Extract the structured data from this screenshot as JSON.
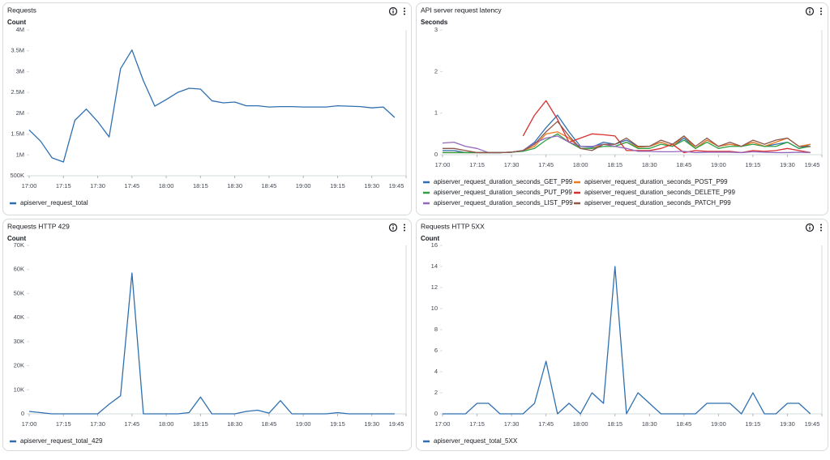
{
  "chart_data": [
    {
      "type": "line",
      "title": "Requests",
      "y_label": "Count",
      "x": [
        "17:00",
        "17:05",
        "17:10",
        "17:15",
        "17:20",
        "17:25",
        "17:30",
        "17:35",
        "17:40",
        "17:45",
        "17:50",
        "17:55",
        "18:00",
        "18:05",
        "18:10",
        "18:15",
        "18:20",
        "18:25",
        "18:30",
        "18:35",
        "18:40",
        "18:45",
        "18:50",
        "18:55",
        "19:00",
        "19:05",
        "19:10",
        "19:15",
        "19:20",
        "19:25",
        "19:30",
        "19:35",
        "19:40"
      ],
      "xlim": [
        "17:00",
        "19:45"
      ],
      "xticks": [
        "17:00",
        "17:15",
        "17:30",
        "17:45",
        "18:00",
        "18:15",
        "18:30",
        "18:45",
        "19:00",
        "19:15",
        "19:30",
        "19:45"
      ],
      "ylim": [
        500000,
        4000000
      ],
      "yticks": [
        {
          "value": 500000,
          "label": "500K"
        },
        {
          "value": 1000000,
          "label": "1M"
        },
        {
          "value": 1500000,
          "label": "1.5M"
        },
        {
          "value": 2000000,
          "label": "2M"
        },
        {
          "value": 2500000,
          "label": "2.5M"
        },
        {
          "value": 3000000,
          "label": "3M"
        },
        {
          "value": 3500000,
          "label": "3.5M"
        },
        {
          "value": 4000000,
          "label": "4M"
        }
      ],
      "series": [
        {
          "name": "apiserver_request_total",
          "color": "#2f6fb0",
          "values": [
            1600000,
            1330000,
            930000,
            830000,
            1830000,
            2100000,
            1800000,
            1430000,
            3070000,
            3520000,
            2780000,
            2170000,
            2330000,
            2500000,
            2600000,
            2580000,
            2300000,
            2250000,
            2270000,
            2180000,
            2180000,
            2150000,
            2160000,
            2160000,
            2150000,
            2150000,
            2150000,
            2180000,
            2170000,
            2160000,
            2130000,
            2150000,
            1900000
          ]
        }
      ]
    },
    {
      "type": "line",
      "title": "API server request latency",
      "y_label": "Seconds",
      "x": [
        "17:00",
        "17:05",
        "17:10",
        "17:15",
        "17:20",
        "17:25",
        "17:30",
        "17:35",
        "17:40",
        "17:45",
        "17:50",
        "17:55",
        "18:00",
        "18:05",
        "18:10",
        "18:15",
        "18:20",
        "18:25",
        "18:30",
        "18:35",
        "18:40",
        "18:45",
        "18:50",
        "18:55",
        "19:00",
        "19:05",
        "19:10",
        "19:15",
        "19:20",
        "19:25",
        "19:30",
        "19:35",
        "19:40"
      ],
      "xlim": [
        "17:00",
        "19:45"
      ],
      "xticks": [
        "17:00",
        "17:15",
        "17:30",
        "17:45",
        "18:00",
        "18:15",
        "18:30",
        "18:45",
        "19:00",
        "19:15",
        "19:30",
        "19:45"
      ],
      "ylim": [
        0,
        3
      ],
      "yticks": [
        0,
        1,
        2,
        3
      ],
      "series": [
        {
          "name": "apiserver_request_duration_seconds_GET_P99",
          "color": "#2f6fb0",
          "values": [
            0.1,
            0.1,
            0.05,
            0.05,
            0.05,
            0.05,
            0.06,
            0.1,
            0.3,
            0.65,
            0.95,
            0.55,
            0.2,
            0.18,
            0.3,
            0.25,
            0.35,
            0.2,
            0.2,
            0.3,
            0.2,
            0.4,
            0.15,
            0.35,
            0.2,
            0.25,
            0.2,
            0.3,
            0.2,
            0.25,
            0.3,
            0.15,
            0.25
          ]
        },
        {
          "name": "apiserver_request_duration_seconds_POST_P99",
          "color": "#ec7a1c",
          "values": [
            0.05,
            0.05,
            0.05,
            0.05,
            0.05,
            0.05,
            0.06,
            0.1,
            0.2,
            0.5,
            0.55,
            0.4,
            0.15,
            0.15,
            0.25,
            0.2,
            0.3,
            0.18,
            0.2,
            0.3,
            0.2,
            0.45,
            0.15,
            0.35,
            0.2,
            0.25,
            0.2,
            0.3,
            0.2,
            0.3,
            0.4,
            0.2,
            0.25
          ]
        },
        {
          "name": "apiserver_request_duration_seconds_PUT_P99",
          "color": "#2ea043",
          "values": [
            0.05,
            0.05,
            0.05,
            0.05,
            0.05,
            0.05,
            0.06,
            0.08,
            0.15,
            0.35,
            0.5,
            0.3,
            0.15,
            0.15,
            0.2,
            0.2,
            0.3,
            0.15,
            0.15,
            0.25,
            0.2,
            0.35,
            0.15,
            0.3,
            0.15,
            0.2,
            0.2,
            0.25,
            0.2,
            0.2,
            0.3,
            0.15,
            0.2
          ]
        },
        {
          "name": "apiserver_request_duration_seconds_DELETE_P99",
          "color": "#d62f2f",
          "values": [
            null,
            null,
            null,
            null,
            null,
            null,
            null,
            0.45,
            0.95,
            1.3,
            0.85,
            0.3,
            0.4,
            0.5,
            0.48,
            0.45,
            0.1,
            0.1,
            0.1,
            0.15,
            0.25,
            0.05,
            0.1,
            0.08,
            0.08,
            0.08,
            0.05,
            0.1,
            0.08,
            0.1,
            0.15,
            0.1,
            0.05
          ]
        },
        {
          "name": "apiserver_request_duration_seconds_LIST_P99",
          "color": "#9467bd",
          "values": [
            0.28,
            0.3,
            0.2,
            0.15,
            0.05,
            0.05,
            0.06,
            0.1,
            0.28,
            0.4,
            0.45,
            0.3,
            0.2,
            0.2,
            0.25,
            0.2,
            0.15,
            0.08,
            0.08,
            0.07,
            0.07,
            0.08,
            0.05,
            0.06,
            0.06,
            0.06,
            0.05,
            0.07,
            0.06,
            0.05,
            0.05,
            0.06,
            0.05
          ]
        },
        {
          "name": "apiserver_request_duration_seconds_PATCH_P99",
          "color": "#8c564b",
          "values": [
            0.15,
            0.15,
            0.1,
            0.05,
            0.05,
            0.05,
            0.06,
            0.1,
            0.25,
            0.55,
            0.8,
            0.45,
            0.15,
            0.1,
            0.25,
            0.25,
            0.4,
            0.2,
            0.2,
            0.35,
            0.25,
            0.45,
            0.2,
            0.4,
            0.2,
            0.3,
            0.2,
            0.35,
            0.25,
            0.35,
            0.4,
            0.2,
            0.2
          ]
        }
      ]
    },
    {
      "type": "line",
      "title": "Requests HTTP 429",
      "y_label": "Count",
      "x": [
        "17:00",
        "17:05",
        "17:10",
        "17:15",
        "17:20",
        "17:25",
        "17:30",
        "17:35",
        "17:40",
        "17:45",
        "17:50",
        "17:55",
        "18:00",
        "18:05",
        "18:10",
        "18:15",
        "18:20",
        "18:25",
        "18:30",
        "18:35",
        "18:40",
        "18:45",
        "18:50",
        "18:55",
        "19:00",
        "19:05",
        "19:10",
        "19:15",
        "19:20",
        "19:25",
        "19:30",
        "19:35",
        "19:40"
      ],
      "xlim": [
        "17:00",
        "19:45"
      ],
      "xticks": [
        "17:00",
        "17:15",
        "17:30",
        "17:45",
        "18:00",
        "18:15",
        "18:30",
        "18:45",
        "19:00",
        "19:15",
        "19:30",
        "19:45"
      ],
      "ylim": [
        0,
        70000
      ],
      "yticks": [
        0,
        {
          "value": 10000,
          "label": "10K"
        },
        {
          "value": 20000,
          "label": "20K"
        },
        {
          "value": 30000,
          "label": "30K"
        },
        {
          "value": 40000,
          "label": "40K"
        },
        {
          "value": 50000,
          "label": "50K"
        },
        {
          "value": 60000,
          "label": "60K"
        },
        {
          "value": 70000,
          "label": "70K"
        }
      ],
      "series": [
        {
          "name": "apiserver_request_total_429",
          "color": "#2f6fb0",
          "values": [
            1000,
            500,
            0,
            0,
            0,
            0,
            0,
            4000,
            7500,
            58500,
            0,
            0,
            0,
            0,
            500,
            7000,
            0,
            0,
            0,
            1000,
            1500,
            300,
            5500,
            0,
            0,
            0,
            0,
            500,
            0,
            0,
            0,
            0,
            0
          ]
        }
      ]
    },
    {
      "type": "line",
      "title": "Requests HTTP 5XX",
      "y_label": "Count",
      "x": [
        "17:00",
        "17:05",
        "17:10",
        "17:15",
        "17:20",
        "17:25",
        "17:30",
        "17:35",
        "17:40",
        "17:45",
        "17:50",
        "17:55",
        "18:00",
        "18:05",
        "18:10",
        "18:15",
        "18:20",
        "18:25",
        "18:30",
        "18:35",
        "18:40",
        "18:45",
        "18:50",
        "18:55",
        "19:00",
        "19:05",
        "19:10",
        "19:15",
        "19:20",
        "19:25",
        "19:30",
        "19:35",
        "19:40"
      ],
      "xlim": [
        "17:00",
        "19:45"
      ],
      "xticks": [
        "17:00",
        "17:15",
        "17:30",
        "17:45",
        "18:00",
        "18:15",
        "18:30",
        "18:45",
        "19:00",
        "19:15",
        "19:30",
        "19:45"
      ],
      "ylim": [
        0,
        16
      ],
      "yticks": [
        0,
        2,
        4,
        6,
        8,
        10,
        12,
        14,
        16
      ],
      "series": [
        {
          "name": "apiserver_request_total_5XX",
          "color": "#2f6fb0",
          "values": [
            0,
            0,
            0,
            1,
            1,
            0,
            0,
            0,
            1,
            5,
            0,
            1,
            0,
            2,
            1,
            14,
            0,
            2,
            1,
            0,
            0,
            0,
            0,
            1,
            1,
            1,
            0,
            2,
            0,
            0,
            1,
            1,
            0
          ]
        }
      ]
    }
  ]
}
